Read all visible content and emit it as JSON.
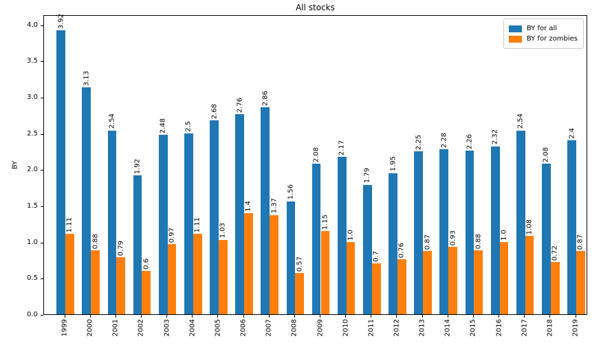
{
  "figure": {
    "background": "#ffffff"
  },
  "chart_data": {
    "type": "bar",
    "title": "All stocks",
    "xlabel": "",
    "ylabel": "BY",
    "categories": [
      "1999",
      "2000",
      "2001",
      "2002",
      "2003",
      "2004",
      "2005",
      "2006",
      "2007",
      "2008",
      "2009",
      "2010",
      "2011",
      "2012",
      "2013",
      "2014",
      "2015",
      "2016",
      "2017",
      "2018",
      "2019"
    ],
    "series": [
      {
        "name": "BY for all",
        "color": "#1f77b4",
        "values": [
          3.92,
          3.13,
          2.54,
          1.92,
          2.48,
          2.5,
          2.68,
          2.76,
          2.86,
          1.56,
          2.08,
          2.17,
          1.79,
          1.95,
          2.25,
          2.28,
          2.26,
          2.32,
          2.54,
          2.08,
          2.4
        ]
      },
      {
        "name": "BY for zombies",
        "color": "#ff7f0e",
        "values": [
          1.11,
          0.88,
          0.79,
          0.6,
          0.97,
          1.11,
          1.03,
          1.4,
          1.37,
          0.57,
          1.15,
          1.0,
          0.7,
          0.76,
          0.87,
          0.93,
          0.88,
          1.0,
          1.08,
          0.72,
          0.87
        ]
      }
    ],
    "ylim": [
      0,
      4.14
    ],
    "yticks": [
      0,
      0.5,
      1,
      1.5,
      2,
      2.5,
      3,
      3.5,
      4
    ],
    "grid": false,
    "legend_position": "upper right",
    "bar_value_labels": true,
    "tick_label_rotation": 90,
    "axis_color": "#000000"
  }
}
